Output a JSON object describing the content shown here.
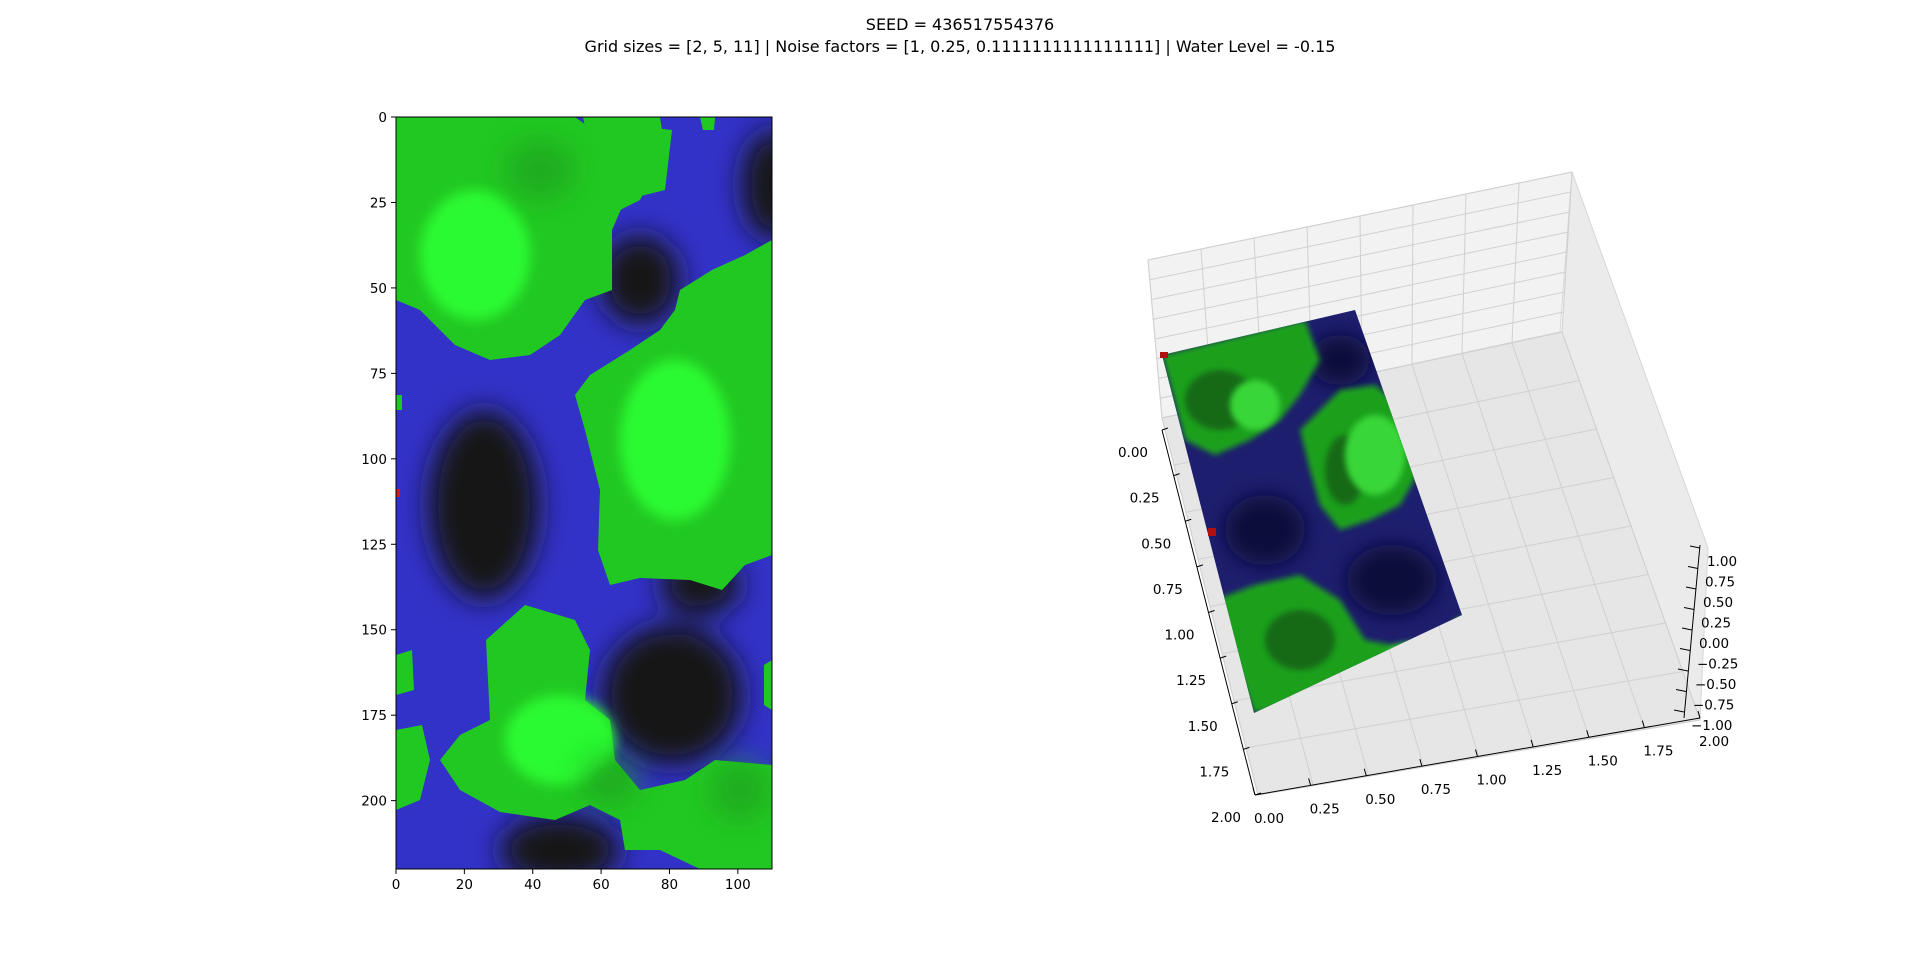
{
  "figure": {
    "title_line1": "SEED = 436517554376",
    "title_line2": "Grid sizes = [2, 5, 11] | Noise factors = [1, 0.25, 0.1111111111111111] | Water Level = -0.15"
  },
  "chart_data": [
    {
      "type": "heatmap",
      "xlim": [
        0,
        110
      ],
      "ylim": [
        220,
        0
      ],
      "x_ticks": [
        0,
        20,
        40,
        60,
        80,
        100
      ],
      "y_ticks": [
        0,
        25,
        50,
        75,
        100,
        125,
        150,
        175,
        200
      ],
      "x_tick_labels": [
        "0",
        "20",
        "40",
        "60",
        "80",
        "100"
      ],
      "y_tick_labels": [
        "0",
        "25",
        "50",
        "75",
        "100",
        "125",
        "150",
        "175",
        "200"
      ],
      "colors": {
        "water": "#3232c8",
        "water_deep": "#141414",
        "land": "#22c822",
        "land_high": "#2afa32",
        "marker": "#c81e1e"
      }
    },
    {
      "type": "surface",
      "x_tick_labels": [
        "0.00",
        "0.25",
        "0.50",
        "0.75",
        "1.00",
        "1.25",
        "1.50",
        "1.75",
        "2.00"
      ],
      "y_tick_labels": [
        "0.00",
        "0.25",
        "0.50",
        "0.75",
        "1.00",
        "1.25",
        "1.50",
        "1.75",
        "2.00"
      ],
      "z_tick_labels": [
        "1.00",
        "0.75",
        "0.50",
        "0.25",
        "0.00",
        "−0.25",
        "−0.50",
        "−0.75",
        "−1.00"
      ],
      "xlim": [
        0,
        2
      ],
      "ylim": [
        0,
        2
      ],
      "zlim": [
        -1,
        1
      ],
      "colors": {
        "water": "#1e1e6e",
        "land_dark": "#156a15",
        "land": "#1fa01f",
        "land_light": "#38d638",
        "marker": "#b01010"
      }
    }
  ]
}
